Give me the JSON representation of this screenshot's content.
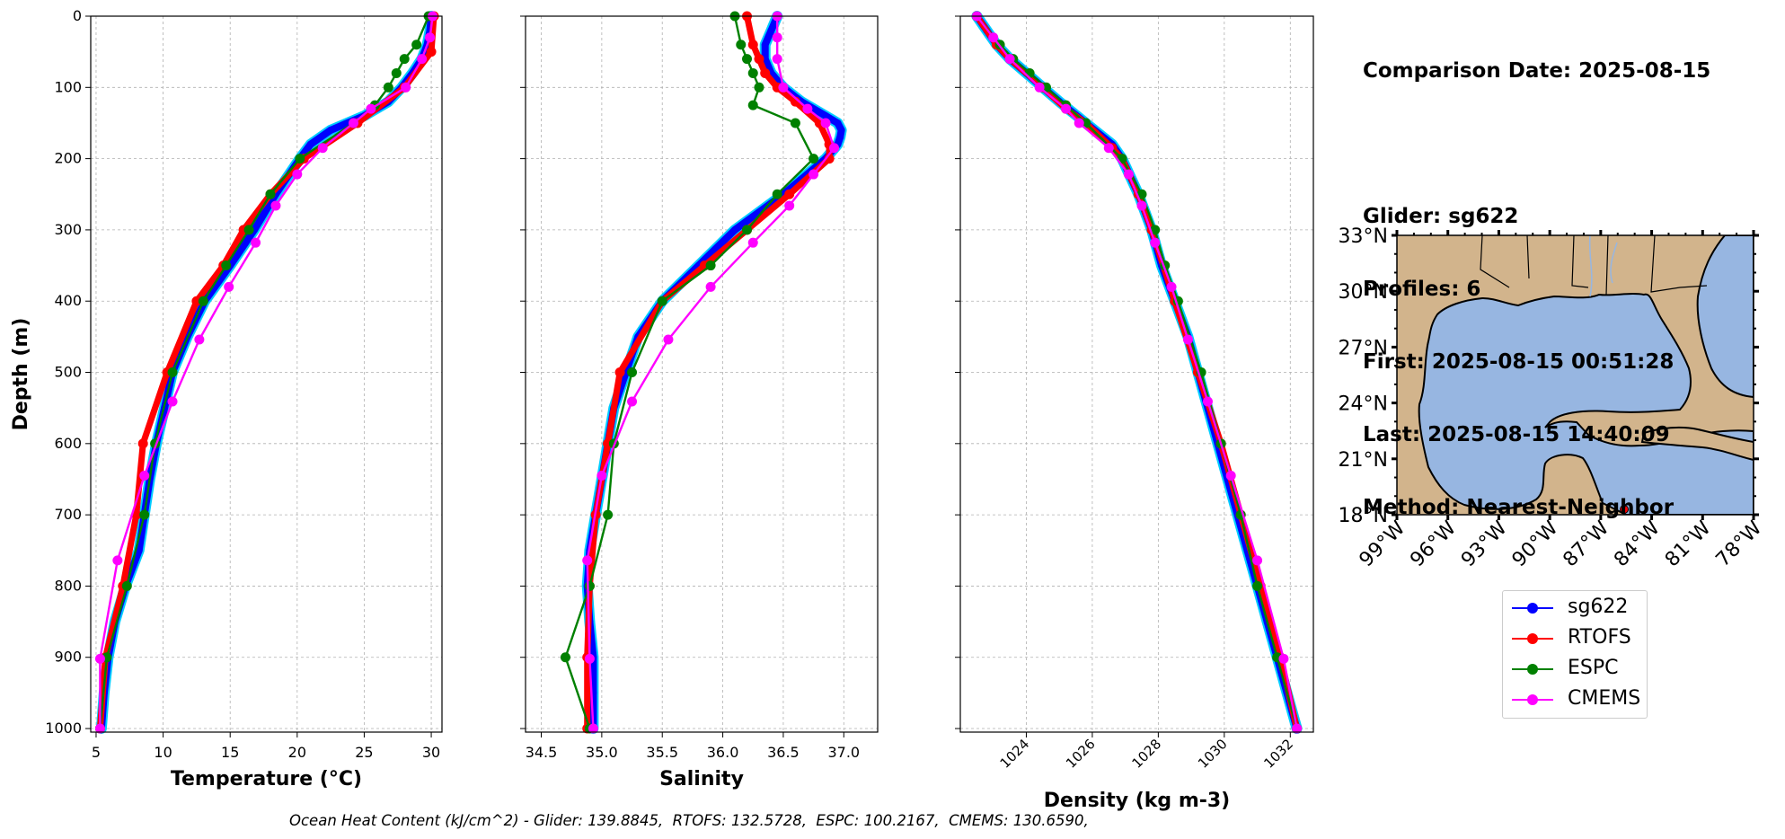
{
  "info": {
    "comparison_date": "Comparison Date: 2025-08-15",
    "glider": "Glider: sg622",
    "profiles": "Profiles: 6",
    "first": "First: 2025-08-15 00:51:28",
    "last": "Last: 2025-08-15 14:40:09",
    "method": "Method: Nearest-Neighbor"
  },
  "footer": "Ocean Heat Content (kJ/cm^2) - Glider: 139.8845,  RTOFS: 132.5728,  ESPC: 100.2167,  CMEMS: 130.6590,",
  "colors": {
    "sg622": "#0000ff",
    "sg622_halo": "#00ccff",
    "RTOFS": "#ff0000",
    "ESPC": "#008000",
    "CMEMS": "#ff00ff",
    "land": "#d2b48c",
    "ocean": "#97b6e1"
  },
  "legend": [
    {
      "name": "sg622",
      "color": "#0000ff"
    },
    {
      "name": "RTOFS",
      "color": "#ff0000"
    },
    {
      "name": "ESPC",
      "color": "#008000"
    },
    {
      "name": "CMEMS",
      "color": "#ff00ff"
    }
  ],
  "chart_data": [
    {
      "type": "line",
      "xlabel": "Temperature (°C)",
      "ylabel": "Depth (m)",
      "xlim": [
        4.6,
        30.8
      ],
      "ylim": [
        1005,
        0
      ],
      "xticks": [
        5,
        10,
        15,
        20,
        25,
        30
      ],
      "yticks": [
        0,
        100,
        200,
        300,
        400,
        500,
        600,
        700,
        800,
        900,
        1000
      ],
      "grid": true,
      "series": [
        {
          "name": "sg622",
          "depth": [
            0,
            20,
            40,
            60,
            80,
            100,
            120,
            140,
            160,
            180,
            200,
            250,
            300,
            350,
            400,
            450,
            500,
            550,
            600,
            650,
            700,
            750,
            800,
            850,
            900,
            950,
            1000
          ],
          "values": [
            30.0,
            29.9,
            29.7,
            29.3,
            28.6,
            27.8,
            26.8,
            25.0,
            22.5,
            21.0,
            20.2,
            18.4,
            16.8,
            15.0,
            13.1,
            11.8,
            10.7,
            10.1,
            9.5,
            9.0,
            8.6,
            8.2,
            7.2,
            6.4,
            5.9,
            5.6,
            5.4
          ]
        },
        {
          "name": "RTOFS",
          "depth": [
            0,
            50,
            100,
            150,
            200,
            250,
            300,
            350,
            400,
            500,
            600,
            700,
            800,
            900,
            1000
          ],
          "values": [
            30.2,
            30.0,
            28.0,
            24.5,
            20.5,
            18.0,
            16.0,
            14.5,
            12.5,
            10.3,
            8.5,
            8.0,
            7.0,
            5.7,
            5.3
          ]
        },
        {
          "name": "ESPC",
          "depth": [
            0,
            40,
            60,
            80,
            100,
            125,
            150,
            200,
            250,
            300,
            350,
            400,
            500,
            600,
            700,
            800,
            900,
            1000
          ],
          "values": [
            29.8,
            28.9,
            28.0,
            27.4,
            26.8,
            25.8,
            24.2,
            20.2,
            18.0,
            16.4,
            14.7,
            13.0,
            10.7,
            9.4,
            8.6,
            7.3,
            5.8,
            5.3
          ]
        },
        {
          "name": "CMEMS",
          "depth": [
            0,
            30,
            60,
            100,
            130,
            150,
            185,
            222,
            266,
            318,
            380,
            454,
            541,
            645,
            764,
            902,
            1000
          ],
          "values": [
            30.1,
            29.9,
            29.3,
            28.1,
            25.5,
            24.2,
            21.9,
            20.0,
            18.4,
            16.9,
            14.9,
            12.7,
            10.7,
            8.6,
            6.6,
            5.3,
            5.3
          ]
        }
      ]
    },
    {
      "type": "line",
      "xlabel": "Salinity",
      "xlim": [
        34.37,
        37.28
      ],
      "ylim": [
        1005,
        0
      ],
      "xticks": [
        34.5,
        35.0,
        35.5,
        36.0,
        36.5,
        37.0
      ],
      "yticks": [
        0,
        100,
        200,
        300,
        400,
        500,
        600,
        700,
        800,
        900,
        1000
      ],
      "grid": true,
      "series": [
        {
          "name": "sg622",
          "depth": [
            0,
            20,
            40,
            60,
            80,
            100,
            120,
            140,
            150,
            160,
            170,
            180,
            200,
            250,
            300,
            350,
            400,
            450,
            500,
            550,
            600,
            650,
            700,
            750,
            800,
            850,
            900,
            950,
            1000
          ],
          "values": [
            36.45,
            36.4,
            36.35,
            36.35,
            36.4,
            36.5,
            36.65,
            36.85,
            36.95,
            36.98,
            36.97,
            36.95,
            36.85,
            36.5,
            36.1,
            35.8,
            35.5,
            35.3,
            35.2,
            35.1,
            35.05,
            35.0,
            34.95,
            34.9,
            34.88,
            34.9,
            34.93,
            34.93,
            34.93
          ]
        },
        {
          "name": "RTOFS",
          "depth": [
            0,
            40,
            60,
            80,
            100,
            120,
            150,
            180,
            200,
            250,
            300,
            350,
            400,
            500,
            600,
            700,
            800,
            900,
            1000
          ],
          "values": [
            36.2,
            36.25,
            36.3,
            36.35,
            36.45,
            36.6,
            36.8,
            36.88,
            36.88,
            36.55,
            36.2,
            35.85,
            35.5,
            35.15,
            35.05,
            34.95,
            34.9,
            34.88,
            34.88
          ]
        },
        {
          "name": "ESPC",
          "depth": [
            0,
            40,
            60,
            80,
            100,
            125,
            150,
            200,
            250,
            300,
            350,
            400,
            500,
            600,
            700,
            800,
            900,
            1000
          ],
          "values": [
            36.1,
            36.15,
            36.2,
            36.25,
            36.3,
            36.25,
            36.6,
            36.75,
            36.45,
            36.2,
            35.9,
            35.5,
            35.25,
            35.1,
            35.05,
            34.9,
            34.7,
            34.9
          ]
        },
        {
          "name": "CMEMS",
          "depth": [
            0,
            30,
            60,
            100,
            130,
            150,
            185,
            222,
            266,
            318,
            380,
            454,
            541,
            645,
            764,
            902,
            1000
          ],
          "values": [
            36.45,
            36.45,
            36.45,
            36.5,
            36.7,
            36.85,
            36.92,
            36.75,
            36.55,
            36.25,
            35.9,
            35.55,
            35.25,
            35.0,
            34.88,
            34.9,
            34.93
          ]
        }
      ]
    },
    {
      "type": "line",
      "xlabel": "Density (kg m-3)",
      "xlim": [
        1022.0,
        1032.7
      ],
      "ylim": [
        1005,
        0
      ],
      "xticks": [
        1024,
        1026,
        1028,
        1030,
        1032
      ],
      "yticks": [
        0,
        100,
        200,
        300,
        400,
        500,
        600,
        700,
        800,
        900,
        1000
      ],
      "grid": true,
      "series": [
        {
          "name": "sg622",
          "depth": [
            0,
            20,
            40,
            60,
            80,
            100,
            120,
            150,
            180,
            200,
            250,
            300,
            350,
            400,
            450,
            500,
            550,
            600,
            650,
            700,
            750,
            800,
            850,
            900,
            950,
            1000
          ],
          "values": [
            1022.5,
            1022.8,
            1023.1,
            1023.5,
            1024.0,
            1024.5,
            1025.0,
            1025.8,
            1026.6,
            1026.9,
            1027.4,
            1027.8,
            1028.1,
            1028.5,
            1028.9,
            1029.2,
            1029.5,
            1029.8,
            1030.1,
            1030.4,
            1030.7,
            1031.0,
            1031.3,
            1031.6,
            1031.9,
            1032.2
          ]
        },
        {
          "name": "RTOFS",
          "depth": [
            0,
            40,
            60,
            100,
            130,
            150,
            185,
            200,
            250,
            300,
            400,
            500,
            600,
            700,
            800,
            900,
            1000
          ],
          "values": [
            1022.5,
            1023.1,
            1023.5,
            1024.5,
            1025.2,
            1025.8,
            1026.6,
            1026.9,
            1027.4,
            1027.8,
            1028.5,
            1029.2,
            1029.9,
            1030.5,
            1031.1,
            1031.7,
            1032.2
          ]
        },
        {
          "name": "ESPC",
          "depth": [
            0,
            40,
            60,
            80,
            100,
            125,
            150,
            200,
            250,
            300,
            350,
            400,
            500,
            600,
            700,
            800,
            900,
            1000
          ],
          "values": [
            1022.5,
            1023.2,
            1023.6,
            1024.1,
            1024.6,
            1025.2,
            1025.8,
            1026.9,
            1027.5,
            1027.9,
            1028.2,
            1028.6,
            1029.3,
            1029.9,
            1030.5,
            1031.0,
            1031.6,
            1032.2
          ]
        },
        {
          "name": "CMEMS",
          "depth": [
            0,
            30,
            60,
            100,
            130,
            150,
            185,
            222,
            266,
            318,
            380,
            454,
            541,
            645,
            764,
            902,
            1000
          ],
          "values": [
            1022.5,
            1023.0,
            1023.5,
            1024.4,
            1025.2,
            1025.6,
            1026.5,
            1027.1,
            1027.5,
            1027.9,
            1028.4,
            1028.9,
            1029.5,
            1030.2,
            1031.0,
            1031.8,
            1032.2
          ]
        }
      ]
    }
  ],
  "map": {
    "lat_ticks": [
      "33°N",
      "30°N",
      "27°N",
      "24°N",
      "21°N",
      "18°N"
    ],
    "lon_ticks": [
      "99°W",
      "96°W",
      "93°W",
      "90°W",
      "87°W",
      "84°W",
      "81°W",
      "78°W"
    ],
    "lon_range": [
      -99,
      -78
    ],
    "lat_range": [
      18,
      33
    ],
    "glider_position": {
      "lon": -85.8,
      "lat": 18.3
    }
  }
}
